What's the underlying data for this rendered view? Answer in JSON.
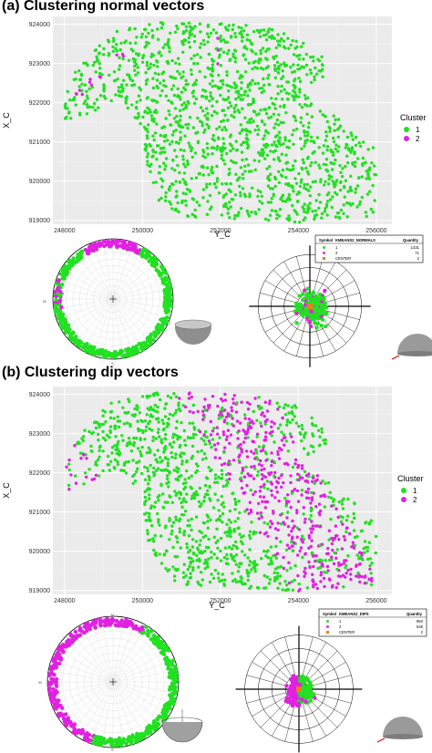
{
  "panels": [
    {
      "label": "(a) Clustering normal vectors",
      "table": {
        "headers": [
          "Symbol",
          "KMEANS2_NORMALS",
          "Quantity"
        ],
        "rows": [
          {
            "symbol": "dot",
            "color": "#3ad13a",
            "label": "1",
            "quantity": "1431"
          },
          {
            "symbol": "dot",
            "color": "#d13ad1",
            "label": "2",
            "quantity": "71"
          },
          {
            "symbol": "square",
            "color": "#f07a1a",
            "label": "CENTER",
            "quantity": "2"
          }
        ]
      }
    },
    {
      "label": "(b) Clustering dip vectors",
      "table": {
        "headers": [
          "Symbol",
          "KMEANS2_DIPS",
          "Quantity"
        ],
        "rows": [
          {
            "symbol": "dot",
            "color": "#3ad13a",
            "label": "1",
            "quantity": "953"
          },
          {
            "symbol": "dot",
            "color": "#d13ad1",
            "label": "2",
            "quantity": "549"
          },
          {
            "symbol": "square",
            "color": "#f07a1a",
            "label": "CENTER",
            "quantity": "2"
          }
        ]
      }
    }
  ],
  "stereonet_labels": {
    "north": "N",
    "south": "S",
    "east": "E",
    "west": "W"
  },
  "colors": {
    "cluster1": "#22e022",
    "cluster2": "#e022e0",
    "panel_bg": "#ebebeb",
    "center": "#f07a1a"
  },
  "chart_data": [
    {
      "type": "scatter",
      "title": "(a) Clustering normal vectors",
      "xlabel": "Y_C",
      "ylabel": "X_C",
      "xlim": [
        247700,
        256400
      ],
      "ylim": [
        918900,
        924200
      ],
      "x_ticks": [
        248000,
        250000,
        252000,
        254000,
        256000
      ],
      "y_ticks": [
        919000,
        920000,
        921000,
        922000,
        923000,
        924000
      ],
      "grid": true,
      "legend_title": "Cluster",
      "legend_position": "right",
      "series": [
        {
          "name": "1",
          "color": "#22e022",
          "count": 1431
        },
        {
          "name": "2",
          "color": "#e022e0",
          "count": 71
        }
      ]
    },
    {
      "type": "scatter",
      "title": "(b) Clustering dip vectors",
      "xlabel": "Y_C",
      "ylabel": "X_C",
      "xlim": [
        247700,
        256400
      ],
      "ylim": [
        918900,
        924200
      ],
      "x_ticks": [
        248000,
        250000,
        252000,
        254000,
        256000
      ],
      "y_ticks": [
        919000,
        920000,
        921000,
        922000,
        923000,
        924000
      ],
      "grid": true,
      "legend_title": "Cluster",
      "legend_position": "right",
      "series": [
        {
          "name": "1",
          "color": "#22e022",
          "count": 953
        },
        {
          "name": "2",
          "color": "#e022e0",
          "count": 549
        }
      ]
    }
  ]
}
